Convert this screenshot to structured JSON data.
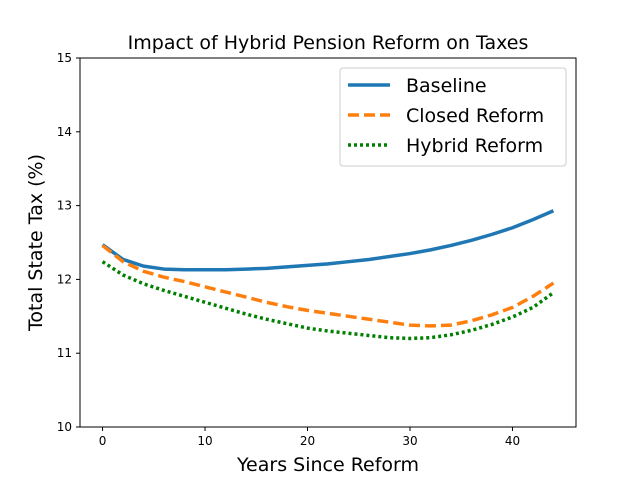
{
  "chart_data": {
    "type": "line",
    "title": "Impact of Hybrid Pension Reform on Taxes",
    "xlabel": "Years Since Reform",
    "ylabel": "Total State Tax (%)",
    "xlim": [
      -2.2,
      46.2
    ],
    "ylim": [
      10,
      15
    ],
    "xticks": [
      0,
      10,
      20,
      30,
      40
    ],
    "yticks": [
      10,
      11,
      12,
      13,
      14,
      15
    ],
    "grid": false,
    "legend_position": "top-right",
    "series": [
      {
        "name": "Baseline",
        "style": "solid",
        "color": "#1f77b4",
        "x": [
          0,
          2,
          4,
          6,
          8,
          10,
          12,
          14,
          16,
          18,
          20,
          22,
          24,
          26,
          28,
          30,
          32,
          34,
          36,
          38,
          40,
          42,
          44
        ],
        "y": [
          12.47,
          12.27,
          12.18,
          12.14,
          12.13,
          12.13,
          12.13,
          12.14,
          12.15,
          12.17,
          12.19,
          12.21,
          12.24,
          12.27,
          12.31,
          12.35,
          12.4,
          12.46,
          12.53,
          12.61,
          12.7,
          12.81,
          12.93
        ]
      },
      {
        "name": "Closed Reform",
        "style": "dashed",
        "color": "#ff7f0e",
        "x": [
          0,
          2,
          4,
          6,
          8,
          10,
          12,
          14,
          16,
          18,
          20,
          22,
          24,
          26,
          28,
          30,
          32,
          34,
          36,
          38,
          40,
          42,
          44
        ],
        "y": [
          12.46,
          12.24,
          12.11,
          12.03,
          11.97,
          11.9,
          11.83,
          11.76,
          11.69,
          11.63,
          11.58,
          11.54,
          11.5,
          11.46,
          11.42,
          11.38,
          11.37,
          11.38,
          11.44,
          11.52,
          11.62,
          11.77,
          11.95
        ]
      },
      {
        "name": "Hybrid Reform",
        "style": "dotted",
        "color": "#008000",
        "x": [
          0,
          2,
          4,
          6,
          8,
          10,
          12,
          14,
          16,
          18,
          20,
          22,
          24,
          26,
          28,
          30,
          32,
          34,
          36,
          38,
          40,
          42,
          44
        ],
        "y": [
          12.24,
          12.06,
          11.94,
          11.85,
          11.77,
          11.69,
          11.61,
          11.53,
          11.46,
          11.4,
          11.34,
          11.3,
          11.27,
          11.24,
          11.21,
          11.2,
          11.21,
          11.25,
          11.31,
          11.39,
          11.49,
          11.62,
          11.82
        ]
      }
    ]
  }
}
